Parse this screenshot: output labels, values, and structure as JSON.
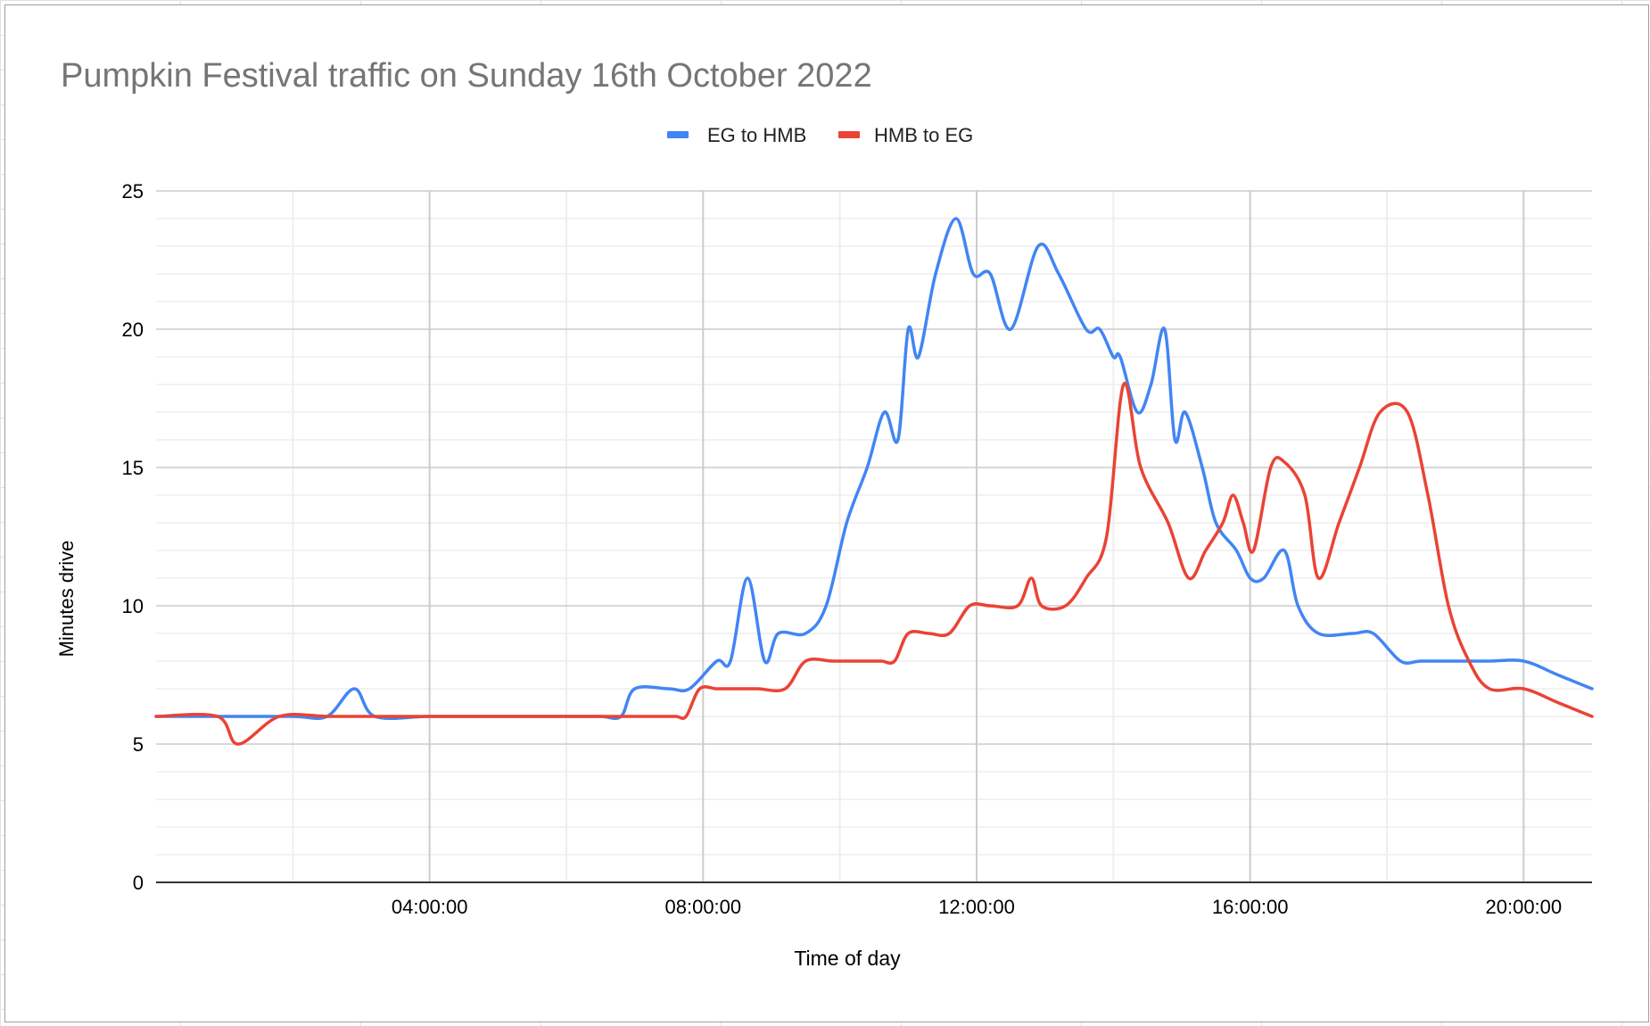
{
  "chart_data": {
    "type": "line",
    "title": "Pumpkin Festival traffic on Sunday 16th October 2022",
    "xlabel": "Time of day",
    "ylabel": "Minutes drive",
    "x_unit": "hours since midnight",
    "xlim": [
      0,
      21.0
    ],
    "ylim": [
      0,
      25
    ],
    "y_ticks": [
      0,
      5,
      10,
      15,
      20,
      25
    ],
    "x_ticks": [
      4,
      8,
      12,
      16,
      20
    ],
    "x_tick_labels": [
      "04:00:00",
      "08:00:00",
      "12:00:00",
      "16:00:00",
      "20:00:00"
    ],
    "legend_position": "top",
    "grid": true,
    "series": [
      {
        "name": "EG to HMB",
        "color": "#4285f4",
        "points": [
          [
            0,
            6
          ],
          [
            1,
            6
          ],
          [
            2,
            6
          ],
          [
            2.5,
            6
          ],
          [
            2.9,
            7
          ],
          [
            3.2,
            6
          ],
          [
            4,
            6
          ],
          [
            5,
            6
          ],
          [
            6,
            6
          ],
          [
            6.5,
            6
          ],
          [
            6.8,
            6
          ],
          [
            7,
            7
          ],
          [
            7.5,
            7
          ],
          [
            7.8,
            7
          ],
          [
            8.2,
            8
          ],
          [
            8.4,
            8
          ],
          [
            8.65,
            11
          ],
          [
            8.9,
            8
          ],
          [
            9.1,
            9
          ],
          [
            9.5,
            9
          ],
          [
            9.8,
            10
          ],
          [
            10.1,
            13
          ],
          [
            10.4,
            15
          ],
          [
            10.65,
            17
          ],
          [
            10.85,
            16
          ],
          [
            11,
            20
          ],
          [
            11.15,
            19
          ],
          [
            11.4,
            22
          ],
          [
            11.7,
            24
          ],
          [
            11.95,
            22
          ],
          [
            12.2,
            22
          ],
          [
            12.5,
            20
          ],
          [
            12.9,
            23
          ],
          [
            13.2,
            22
          ],
          [
            13.6,
            20
          ],
          [
            13.8,
            20
          ],
          [
            14,
            19
          ],
          [
            14.1,
            19
          ],
          [
            14.35,
            17
          ],
          [
            14.55,
            18
          ],
          [
            14.75,
            20
          ],
          [
            14.9,
            16
          ],
          [
            15.05,
            17
          ],
          [
            15.3,
            15
          ],
          [
            15.5,
            13
          ],
          [
            15.8,
            12
          ],
          [
            16,
            11
          ],
          [
            16.2,
            11
          ],
          [
            16.5,
            12
          ],
          [
            16.7,
            10
          ],
          [
            17,
            9
          ],
          [
            17.5,
            9
          ],
          [
            17.8,
            9
          ],
          [
            18.2,
            8
          ],
          [
            18.5,
            8
          ],
          [
            19,
            8
          ],
          [
            19.5,
            8
          ],
          [
            20,
            8
          ],
          [
            20.5,
            7.5
          ],
          [
            21,
            7
          ]
        ]
      },
      {
        "name": "HMB to EG",
        "color": "#ea4335",
        "points": [
          [
            0,
            6
          ],
          [
            0.9,
            6
          ],
          [
            1.2,
            5
          ],
          [
            1.8,
            6
          ],
          [
            2.5,
            6
          ],
          [
            3,
            6
          ],
          [
            4,
            6
          ],
          [
            5,
            6
          ],
          [
            6,
            6
          ],
          [
            7,
            6
          ],
          [
            7.3,
            6
          ],
          [
            7.6,
            6
          ],
          [
            7.75,
            6
          ],
          [
            7.95,
            7
          ],
          [
            8.2,
            7
          ],
          [
            8.5,
            7
          ],
          [
            8.8,
            7
          ],
          [
            9.2,
            7
          ],
          [
            9.5,
            8
          ],
          [
            9.9,
            8
          ],
          [
            10.3,
            8
          ],
          [
            10.6,
            8
          ],
          [
            10.8,
            8
          ],
          [
            11,
            9
          ],
          [
            11.3,
            9
          ],
          [
            11.6,
            9
          ],
          [
            11.9,
            10
          ],
          [
            12.2,
            10
          ],
          [
            12.6,
            10
          ],
          [
            12.8,
            11
          ],
          [
            12.95,
            10
          ],
          [
            13.3,
            10
          ],
          [
            13.6,
            11
          ],
          [
            13.9,
            12.5
          ],
          [
            14.15,
            18
          ],
          [
            14.4,
            15
          ],
          [
            14.8,
            13
          ],
          [
            15.1,
            11
          ],
          [
            15.35,
            12
          ],
          [
            15.6,
            13
          ],
          [
            15.75,
            14
          ],
          [
            15.9,
            13
          ],
          [
            16.05,
            12
          ],
          [
            16.3,
            15
          ],
          [
            16.5,
            15.2
          ],
          [
            16.8,
            14
          ],
          [
            17,
            11
          ],
          [
            17.3,
            13
          ],
          [
            17.6,
            15
          ],
          [
            17.9,
            17
          ],
          [
            18.3,
            17
          ],
          [
            18.6,
            14
          ],
          [
            18.9,
            10
          ],
          [
            19.2,
            8
          ],
          [
            19.5,
            7
          ],
          [
            20,
            7
          ],
          [
            20.5,
            6.5
          ],
          [
            21,
            6
          ]
        ]
      }
    ]
  }
}
